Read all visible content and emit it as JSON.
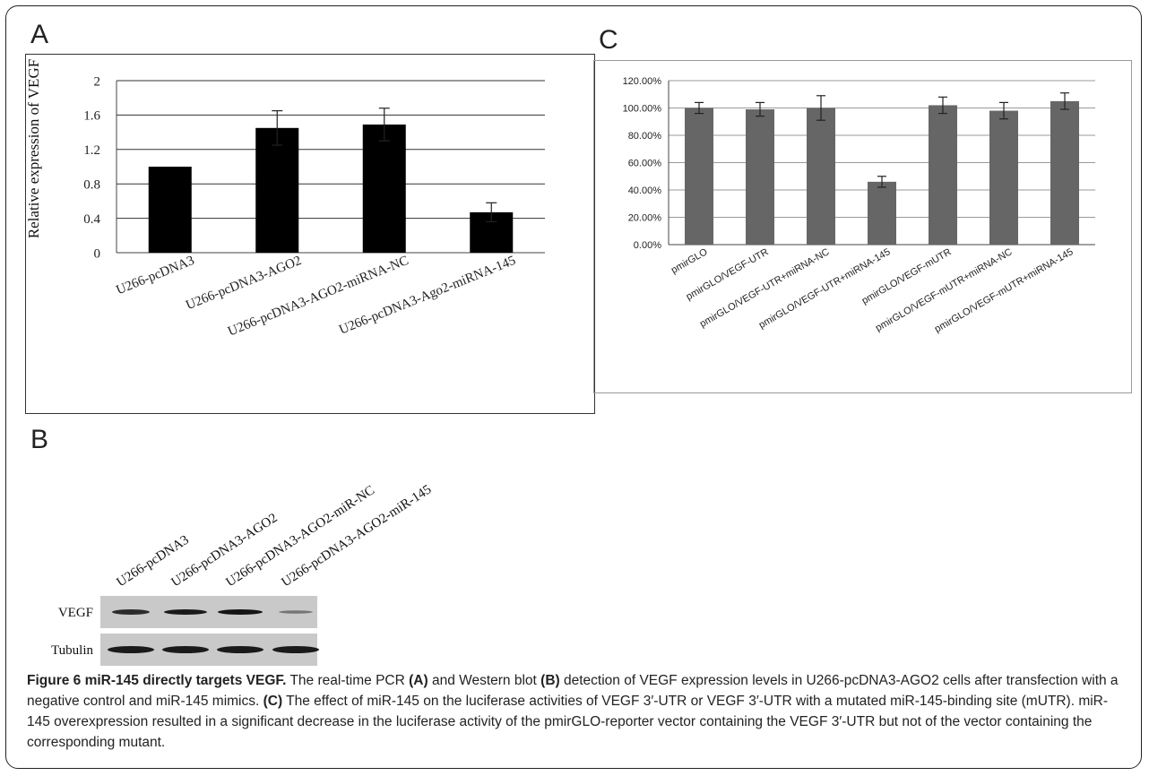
{
  "panels": {
    "a_label": "A",
    "b_label": "B",
    "c_label": "C"
  },
  "chart_data": [
    {
      "type": "bar",
      "panel": "A",
      "title": "",
      "xlabel": "",
      "ylabel": "Relative expression of VEGF",
      "ylim": [
        0,
        2
      ],
      "yticks": [
        "0",
        "0.4",
        "0.8",
        "1.2",
        "1.6",
        "2"
      ],
      "grid": true,
      "color": "#000000",
      "categories": [
        "U266-pcDNA3",
        "U266-pcDNA3-AGO2",
        "U266-pcDNA3-AGO2-miRNA-NC",
        "U266-pcDNA3-Ago2-miRNA-145"
      ],
      "values": [
        1.0,
        1.45,
        1.49,
        0.47
      ],
      "errors": [
        0,
        0.2,
        0.19,
        0.11
      ]
    },
    {
      "type": "bar",
      "panel": "C",
      "title": "",
      "xlabel": "",
      "ylabel": "",
      "ylim": [
        0,
        120
      ],
      "yticks": [
        "0.00%",
        "20.00%",
        "40.00%",
        "60.00%",
        "80.00%",
        "100.00%",
        "120.00%"
      ],
      "grid": true,
      "color": "#666666",
      "categories": [
        "pmirGLO",
        "pmirGLO/VEGF-UTR",
        "pmirGLO/VEGF-UTR+miRNA-NC",
        "pmirGLO/VEGF-UTR+miRNA-145",
        "pmirGLO/VEGF-mUTR",
        "pmirGLO/VEGF-mUTR+miRNA-NC",
        "pmirGLO/VEGF-mUTR+miRNA-145"
      ],
      "values": [
        100,
        99,
        100,
        46,
        102,
        98,
        105
      ],
      "errors": [
        4,
        5,
        9,
        4,
        6,
        6,
        6
      ]
    }
  ],
  "blot": {
    "lanes": [
      "U266-pcDNA3",
      "U266-pcDNA3-AGO2",
      "U266-pcDNA3-AGO2-miR-NC",
      "U266-pcDNA3-AGO2-miR-145"
    ],
    "rows": [
      "VEGF",
      "Tubulin"
    ]
  },
  "caption": {
    "title": "Figure 6 miR-145 directly targets VEGF.",
    "t1": " The real-time PCR ",
    "a": "(A)",
    "t2": " and Western blot ",
    "b": "(B)",
    "t3": " detection of VEGF expression levels in U266-pcDNA3-AGO2 cells after transfection with a negative control and miR-145 mimics. ",
    "c": "(C)",
    "t4": " The effect of miR-145 on the luciferase activities of VEGF 3′-UTR or VEGF 3′-UTR with a mutated miR-145-binding site (mUTR). miR-145 overexpression resulted in a significant decrease in the luciferase activity of the pmirGLO-reporter vector containing the VEGF 3′-UTR but not of the vector containing the corresponding mutant."
  }
}
